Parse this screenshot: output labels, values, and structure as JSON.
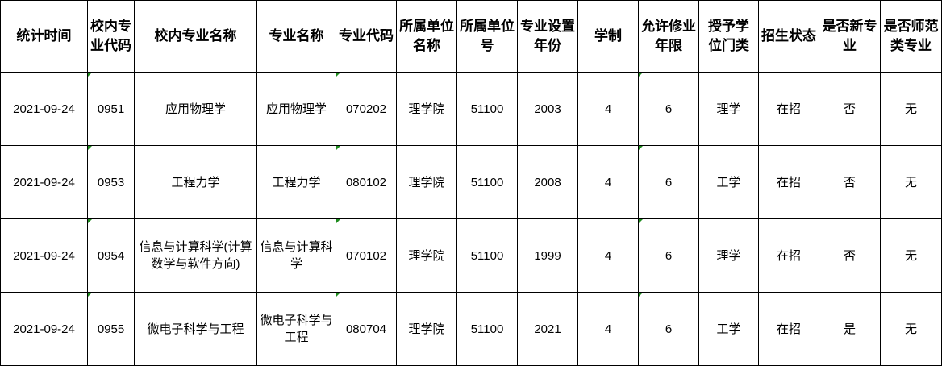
{
  "headers": [
    "统计时间",
    "校内专业代码",
    "校内专业名称",
    "专业名称",
    "专业代码",
    "所属单位名称",
    "所属单位号",
    "专业设置年份",
    "学制",
    "允许修业年限",
    "授予学位门类",
    "招生状态",
    "是否新专业",
    "是否师范类专业"
  ],
  "rows": [
    [
      "2021-09-24",
      "0951",
      "应用物理学",
      "应用物理学",
      "070202",
      "理学院",
      "51100",
      "2003",
      "4",
      "6",
      "理学",
      "在招",
      "否",
      "无"
    ],
    [
      "2021-09-24",
      "0953",
      "工程力学",
      "工程力学",
      "080102",
      "理学院",
      "51100",
      "2008",
      "4",
      "6",
      "工学",
      "在招",
      "否",
      "无"
    ],
    [
      "2021-09-24",
      "0954",
      "信息与计算科学(计算数学与软件方向)",
      "信息与计算科学",
      "070102",
      "理学院",
      "51100",
      "1999",
      "4",
      "6",
      "理学",
      "在招",
      "否",
      "无"
    ],
    [
      "2021-09-24",
      "0955",
      "微电子科学与工程",
      "微电子科学与工程",
      "080704",
      "理学院",
      "51100",
      "2021",
      "4",
      "6",
      "工学",
      "在招",
      "是",
      "无"
    ]
  ],
  "colors": {
    "grid": "#000000",
    "error_marker": "#1e8c1e"
  }
}
